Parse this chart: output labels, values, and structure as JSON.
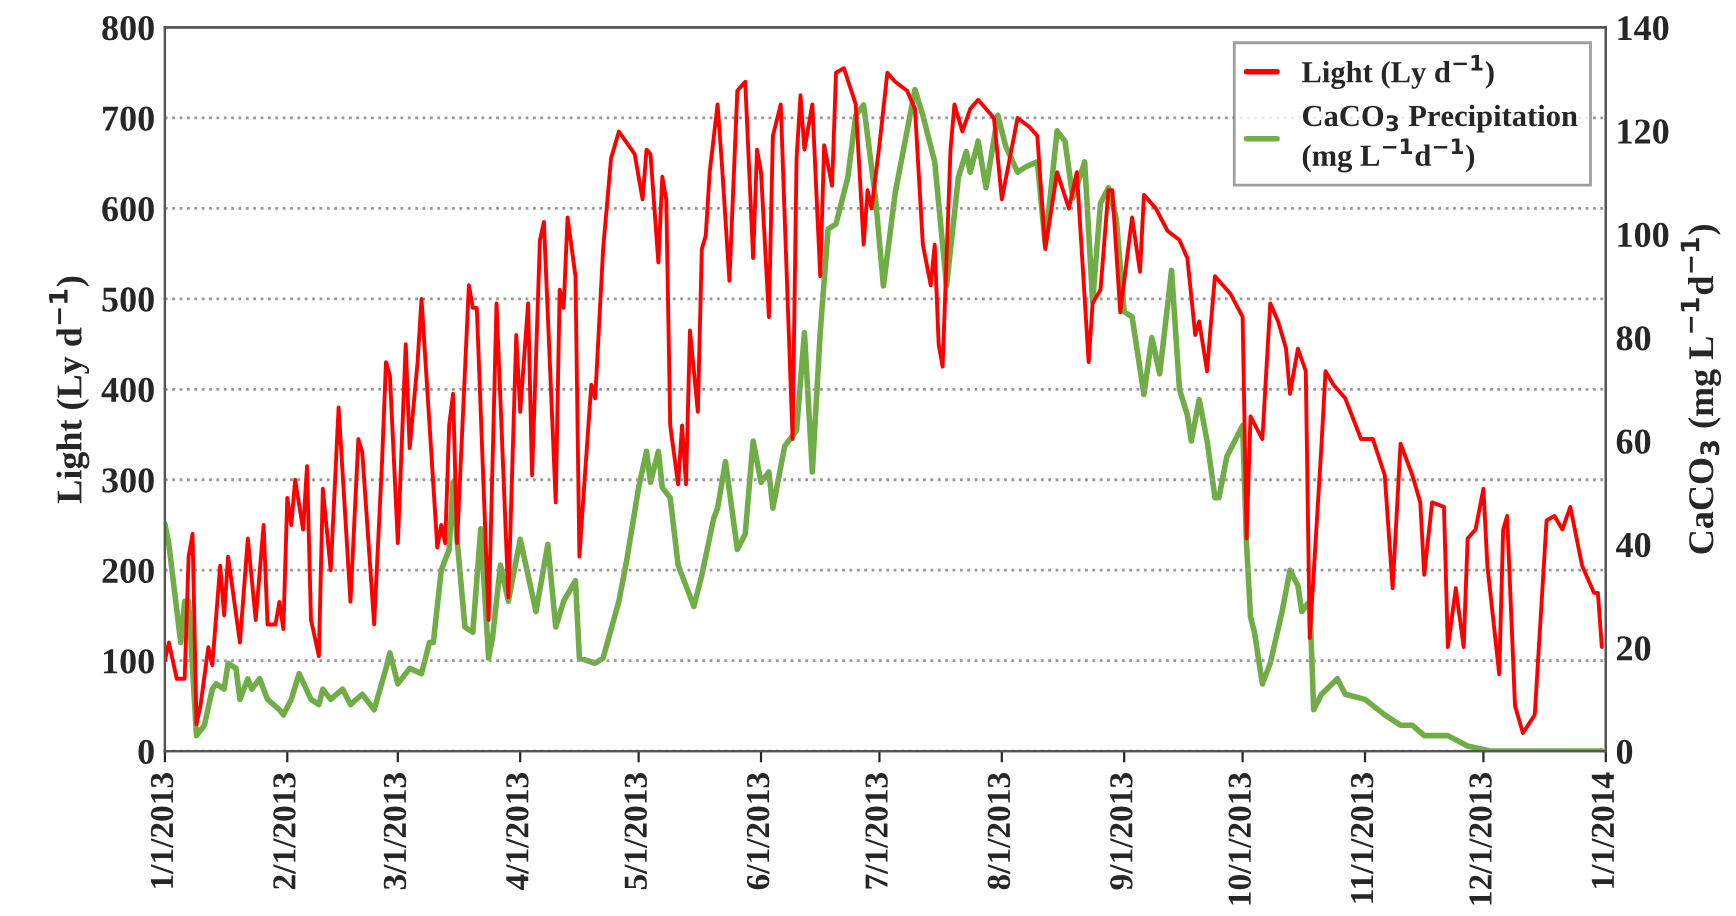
{
  "chart_data": {
    "type": "line",
    "ylabel": "Light (Ly d$^{−1}$)",
    "y2label": "CaCO$_{3}$ (mg L$^{−1}$d$^{−1}$)",
    "xlim": [
      "2013-01-01",
      "2014-01-01"
    ],
    "xticks": [
      {
        "value": "2013-01-01",
        "label": "1/1/2013"
      },
      {
        "value": "2013-02-01",
        "label": "2/1/2013"
      },
      {
        "value": "2013-03-01",
        "label": "3/1/2013"
      },
      {
        "value": "2013-04-01",
        "label": "4/1/2013"
      },
      {
        "value": "2013-05-01",
        "label": "5/1/2013"
      },
      {
        "value": "2013-06-01",
        "label": "6/1/2013"
      },
      {
        "value": "2013-07-01",
        "label": "7/1/2013"
      },
      {
        "value": "2013-08-01",
        "label": "8/1/2013"
      },
      {
        "value": "2013-09-01",
        "label": "9/1/2013"
      },
      {
        "value": "2013-10-01",
        "label": "10/1/2013"
      },
      {
        "value": "2013-11-01",
        "label": "11/1/2013"
      },
      {
        "value": "2013-12-01",
        "label": "12/1/2013"
      },
      {
        "value": "2014-01-01",
        "label": "1/1/2014"
      }
    ],
    "ylim": [
      0,
      800
    ],
    "yticks": [
      0,
      100,
      200,
      300,
      400,
      500,
      600,
      700,
      800
    ],
    "y2lim": [
      0,
      140
    ],
    "y2ticks": [
      0,
      20,
      40,
      60,
      80,
      100,
      120,
      140
    ],
    "grid": "y",
    "legend": "top right",
    "marker": "none",
    "line_style": "solid",
    "series": [
      {
        "name": "Light (Ly d$^{−1}$)",
        "color": "#ff0000",
        "x": [
          "2013-01-01",
          "2013-01-02",
          "2013-01-04",
          "2013-01-06",
          "2013-01-07",
          "2013-01-08",
          "2013-01-09",
          "2013-01-10",
          "2013-01-12",
          "2013-01-13",
          "2013-01-15",
          "2013-01-16",
          "2013-01-17",
          "2013-01-20",
          "2013-01-22",
          "2013-01-24",
          "2013-01-26",
          "2013-01-27",
          "2013-01-29",
          "2013-01-30",
          "2013-01-31",
          "2013-02-01",
          "2013-02-02",
          "2013-02-03",
          "2013-02-05",
          "2013-02-06",
          "2013-02-07",
          "2013-02-09",
          "2013-02-10",
          "2013-02-12",
          "2013-02-14",
          "2013-02-17",
          "2013-02-19",
          "2013-02-20",
          "2013-02-23",
          "2013-02-25",
          "2013-02-26",
          "2013-02-27",
          "2013-03-01",
          "2013-03-03",
          "2013-03-04",
          "2013-03-06",
          "2013-03-07",
          "2013-03-11",
          "2013-03-12",
          "2013-03-13",
          "2013-03-14",
          "2013-03-15",
          "2013-03-16",
          "2013-03-19",
          "2013-03-20",
          "2013-03-21",
          "2013-03-24",
          "2013-03-26",
          "2013-03-29",
          "2013-03-31",
          "2013-04-01",
          "2013-04-03",
          "2013-04-04",
          "2013-04-06",
          "2013-04-07",
          "2013-04-10",
          "2013-04-11",
          "2013-04-12",
          "2013-04-13",
          "2013-04-15",
          "2013-04-16",
          "2013-04-17",
          "2013-04-19",
          "2013-04-20",
          "2013-04-22",
          "2013-04-24",
          "2013-04-26",
          "2013-04-30",
          "2013-05-02",
          "2013-05-03",
          "2013-05-04",
          "2013-05-06",
          "2013-05-07",
          "2013-05-08",
          "2013-05-09",
          "2013-05-11",
          "2013-05-12",
          "2013-05-13",
          "2013-05-14",
          "2013-05-16",
          "2013-05-17",
          "2013-05-18",
          "2013-05-19",
          "2013-05-21",
          "2013-05-22",
          "2013-05-24",
          "2013-05-26",
          "2013-05-28",
          "2013-05-30",
          "2013-05-31",
          "2013-06-01",
          "2013-06-03",
          "2013-06-04",
          "2013-06-06",
          "2013-06-07",
          "2013-06-09",
          "2013-06-10",
          "2013-06-11",
          "2013-06-12",
          "2013-06-14",
          "2013-06-16",
          "2013-06-17",
          "2013-06-19",
          "2013-06-20",
          "2013-06-22",
          "2013-06-25",
          "2013-06-27",
          "2013-06-28",
          "2013-06-29",
          "2013-07-01",
          "2013-07-03",
          "2013-07-05",
          "2013-07-08",
          "2013-07-10",
          "2013-07-12",
          "2013-07-14",
          "2013-07-15",
          "2013-07-16",
          "2013-07-17",
          "2013-07-19",
          "2013-07-20",
          "2013-07-22",
          "2013-07-24",
          "2013-07-26",
          "2013-07-30",
          "2013-08-01",
          "2013-08-03",
          "2013-08-05",
          "2013-08-08",
          "2013-08-10",
          "2013-08-12",
          "2013-08-15",
          "2013-08-18",
          "2013-08-20",
          "2013-08-23",
          "2013-08-24",
          "2013-08-26",
          "2013-08-28",
          "2013-08-29",
          "2013-08-31",
          "2013-09-03",
          "2013-09-05",
          "2013-09-06",
          "2013-09-09",
          "2013-09-12",
          "2013-09-15",
          "2013-09-17",
          "2013-09-19",
          "2013-09-20",
          "2013-09-22",
          "2013-09-23",
          "2013-09-24",
          "2013-09-28",
          "2013-10-01",
          "2013-10-02",
          "2013-10-03",
          "2013-10-06",
          "2013-10-08",
          "2013-10-10",
          "2013-10-12",
          "2013-10-13",
          "2013-10-15",
          "2013-10-17",
          "2013-10-18",
          "2013-10-21",
          "2013-10-22",
          "2013-10-24",
          "2013-10-27",
          "2013-10-31",
          "2013-11-03",
          "2013-11-06",
          "2013-11-08",
          "2013-11-10",
          "2013-11-13",
          "2013-11-15",
          "2013-11-16",
          "2013-11-18",
          "2013-11-21",
          "2013-11-22",
          "2013-11-24",
          "2013-11-26",
          "2013-11-27",
          "2013-11-29",
          "2013-12-01",
          "2013-12-02",
          "2013-12-03",
          "2013-12-05",
          "2013-12-06",
          "2013-12-07",
          "2013-12-09",
          "2013-12-11",
          "2013-12-14",
          "2013-12-17",
          "2013-12-19",
          "2013-12-21",
          "2013-12-23",
          "2013-12-26",
          "2013-12-29",
          "2013-12-30",
          "2013-12-31"
        ],
        "values": [
          100,
          120,
          80,
          80,
          215,
          240,
          30,
          50,
          115,
          95,
          205,
          150,
          215,
          120,
          235,
          145,
          250,
          140,
          140,
          165,
          135,
          280,
          250,
          300,
          245,
          315,
          145,
          105,
          290,
          200,
          380,
          165,
          345,
          330,
          140,
          320,
          430,
          415,
          230,
          450,
          335,
          430,
          500,
          225,
          250,
          230,
          360,
          395,
          230,
          515,
          490,
          490,
          145,
          495,
          170,
          460,
          375,
          495,
          305,
          565,
          585,
          275,
          510,
          490,
          590,
          525,
          215,
          280,
          405,
          390,
          555,
          655,
          685,
          660,
          610,
          665,
          660,
          540,
          635,
          610,
          360,
          295,
          360,
          295,
          465,
          375,
          555,
          570,
          640,
          715,
          655,
          520,
          730,
          740,
          545,
          665,
          640,
          480,
          680,
          715,
          590,
          345,
          655,
          725,
          665,
          715,
          525,
          670,
          625,
          750,
          755,
          715,
          560,
          620,
          600,
          670,
          750,
          740,
          730,
          710,
          560,
          515,
          560,
          450,
          425,
          665,
          715,
          685,
          710,
          720,
          700,
          610,
          655,
          700,
          690,
          680,
          555,
          640,
          600,
          640,
          430,
          495,
          510,
          620,
          620,
          485,
          590,
          530,
          615,
          600,
          575,
          565,
          545,
          460,
          475,
          420,
          475,
          525,
          505,
          480,
          235,
          370,
          345,
          495,
          475,
          445,
          395,
          445,
          420,
          125,
          340,
          420,
          405,
          390,
          345,
          345,
          305,
          180,
          340,
          305,
          275,
          195,
          275,
          270,
          115,
          180,
          115,
          235,
          245,
          290,
          205,
          165,
          85,
          245,
          260,
          50,
          20,
          40,
          255,
          260,
          245,
          270,
          205,
          175,
          175,
          115
        ]
      },
      {
        "name": "CaCO$_{3}$ Precipitation\n(mg L$^{−1}$d$^{−1}$)",
        "color": "#70ad47",
        "axis": "y2",
        "x": [
          "2013-01-01",
          "2013-01-02",
          "2013-01-05",
          "2013-01-06",
          "2013-01-07",
          "2013-01-09",
          "2013-01-11",
          "2013-01-13",
          "2013-01-14",
          "2013-01-16",
          "2013-01-17",
          "2013-01-19",
          "2013-01-20",
          "2013-01-22",
          "2013-01-23",
          "2013-01-25",
          "2013-01-27",
          "2013-01-30",
          "2013-01-31",
          "2013-02-02",
          "2013-02-04",
          "2013-02-07",
          "2013-02-09",
          "2013-02-10",
          "2013-02-12",
          "2013-02-15",
          "2013-02-17",
          "2013-02-20",
          "2013-02-23",
          "2013-02-26",
          "2013-02-27",
          "2013-03-01",
          "2013-03-04",
          "2013-03-07",
          "2013-03-09",
          "2013-03-10",
          "2013-03-12",
          "2013-03-14",
          "2013-03-15",
          "2013-03-16",
          "2013-03-18",
          "2013-03-20",
          "2013-03-22",
          "2013-03-24",
          "2013-03-25",
          "2013-03-27",
          "2013-03-29",
          "2013-04-01",
          "2013-04-05",
          "2013-04-08",
          "2013-04-10",
          "2013-04-12",
          "2013-04-15",
          "2013-04-16",
          "2013-04-20",
          "2013-04-22",
          "2013-04-26",
          "2013-04-28",
          "2013-05-01",
          "2013-05-03",
          "2013-05-04",
          "2013-05-06",
          "2013-05-07",
          "2013-05-09",
          "2013-05-11",
          "2013-05-12",
          "2013-05-15",
          "2013-05-17",
          "2013-05-20",
          "2013-05-21",
          "2013-05-23",
          "2013-05-26",
          "2013-05-28",
          "2013-05-30",
          "2013-06-01",
          "2013-06-03",
          "2013-06-04",
          "2013-06-07",
          "2013-06-10",
          "2013-06-12",
          "2013-06-14",
          "2013-06-16",
          "2013-06-18",
          "2013-06-20",
          "2013-06-23",
          "2013-06-25",
          "2013-06-27",
          "2013-06-30",
          "2013-07-02",
          "2013-07-05",
          "2013-07-08",
          "2013-07-10",
          "2013-07-12",
          "2013-07-15",
          "2013-07-18",
          "2013-07-21",
          "2013-07-23",
          "2013-07-24",
          "2013-07-26",
          "2013-07-28",
          "2013-07-31",
          "2013-08-02",
          "2013-08-05",
          "2013-08-07",
          "2013-08-10",
          "2013-08-12",
          "2013-08-15",
          "2013-08-17",
          "2013-08-19",
          "2013-08-22",
          "2013-08-24",
          "2013-08-26",
          "2013-08-28",
          "2013-08-30",
          "2013-09-01",
          "2013-09-03",
          "2013-09-06",
          "2013-09-08",
          "2013-09-10",
          "2013-09-13",
          "2013-09-15",
          "2013-09-17",
          "2013-09-18",
          "2013-09-20",
          "2013-09-22",
          "2013-09-24",
          "2013-09-25",
          "2013-09-27",
          "2013-09-29",
          "2013-10-01",
          "2013-10-02",
          "2013-10-03",
          "2013-10-04",
          "2013-10-06",
          "2013-10-08",
          "2013-10-11",
          "2013-10-13",
          "2013-10-15",
          "2013-10-16",
          "2013-10-18",
          "2013-10-19",
          "2013-10-21",
          "2013-10-25",
          "2013-10-27",
          "2013-11-01",
          "2013-11-06",
          "2013-11-10",
          "2013-11-13",
          "2013-11-16",
          "2013-11-22",
          "2013-11-27",
          "2013-12-03",
          "2013-12-10",
          "2013-12-31"
        ],
        "values": [
          44,
          40,
          21,
          29,
          29,
          3,
          5,
          12,
          13,
          12,
          17,
          16,
          10,
          14,
          12,
          14,
          10,
          8,
          7,
          10,
          15,
          10,
          9,
          12,
          10,
          12,
          9,
          11,
          8,
          16,
          19,
          13,
          16,
          15,
          21,
          21,
          35,
          39,
          52,
          41,
          24,
          23,
          43,
          18,
          22,
          36,
          29,
          41,
          27,
          40,
          24,
          29,
          33,
          18,
          17,
          18,
          29,
          37,
          51,
          58,
          52,
          58,
          51,
          49,
          36,
          34,
          28,
          34,
          45,
          47,
          56,
          39,
          42,
          60,
          52,
          54,
          47,
          59,
          62,
          81,
          54,
          81,
          101,
          102,
          111,
          123,
          125,
          107,
          90,
          108,
          120,
          128,
          123,
          114,
          90,
          111,
          116,
          112,
          118,
          109,
          123,
          117,
          112,
          113,
          114,
          98,
          120,
          118,
          107,
          114,
          87,
          106,
          109,
          103,
          85,
          84,
          69,
          80,
          73,
          93,
          70,
          65,
          60,
          68,
          60,
          49,
          49,
          57,
          60,
          63,
          40,
          26,
          23,
          13,
          17,
          27,
          35,
          32,
          27,
          29,
          8,
          11,
          14,
          11,
          10,
          7,
          5,
          5,
          3,
          3,
          1,
          0,
          0,
          0
        ]
      }
    ]
  }
}
